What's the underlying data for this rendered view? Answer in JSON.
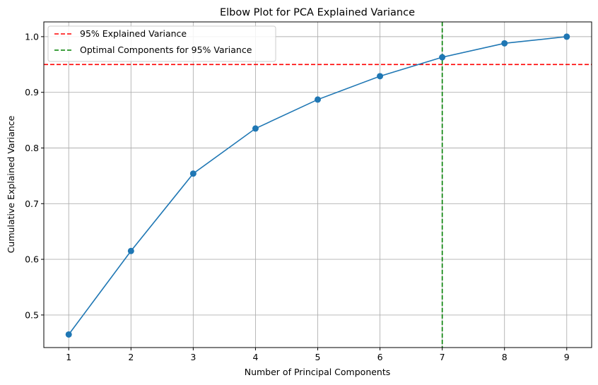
{
  "chart_data": {
    "type": "line",
    "title": "Elbow Plot for PCA Explained Variance",
    "xlabel": "Number of Principal Components",
    "ylabel": "Cumulative Explained Variance",
    "x": [
      1,
      2,
      3,
      4,
      5,
      6,
      7,
      8,
      9
    ],
    "series": [
      {
        "values": [
          0.465,
          0.615,
          0.754,
          0.835,
          0.887,
          0.929,
          0.963,
          0.988,
          1.0
        ],
        "color": "#1f77b4"
      }
    ],
    "xlim": [
      0.6,
      9.4
    ],
    "ylim": [
      0.4415,
      1.0265
    ],
    "xticks": [
      "1",
      "2",
      "3",
      "4",
      "5",
      "6",
      "7",
      "8",
      "9"
    ],
    "yticks": [
      "0.5",
      "0.6",
      "0.7",
      "0.8",
      "0.9",
      "1.0"
    ],
    "grid": true,
    "legend_position": "top-left",
    "reference_lines": [
      {
        "orientation": "horizontal",
        "value": 0.95,
        "color": "#ff0000",
        "style": "dashed",
        "label": "95% Explained Variance"
      },
      {
        "orientation": "vertical",
        "value": 7,
        "color": "#008000",
        "style": "dashed",
        "label": "Optimal Components for 95% Variance"
      }
    ]
  }
}
